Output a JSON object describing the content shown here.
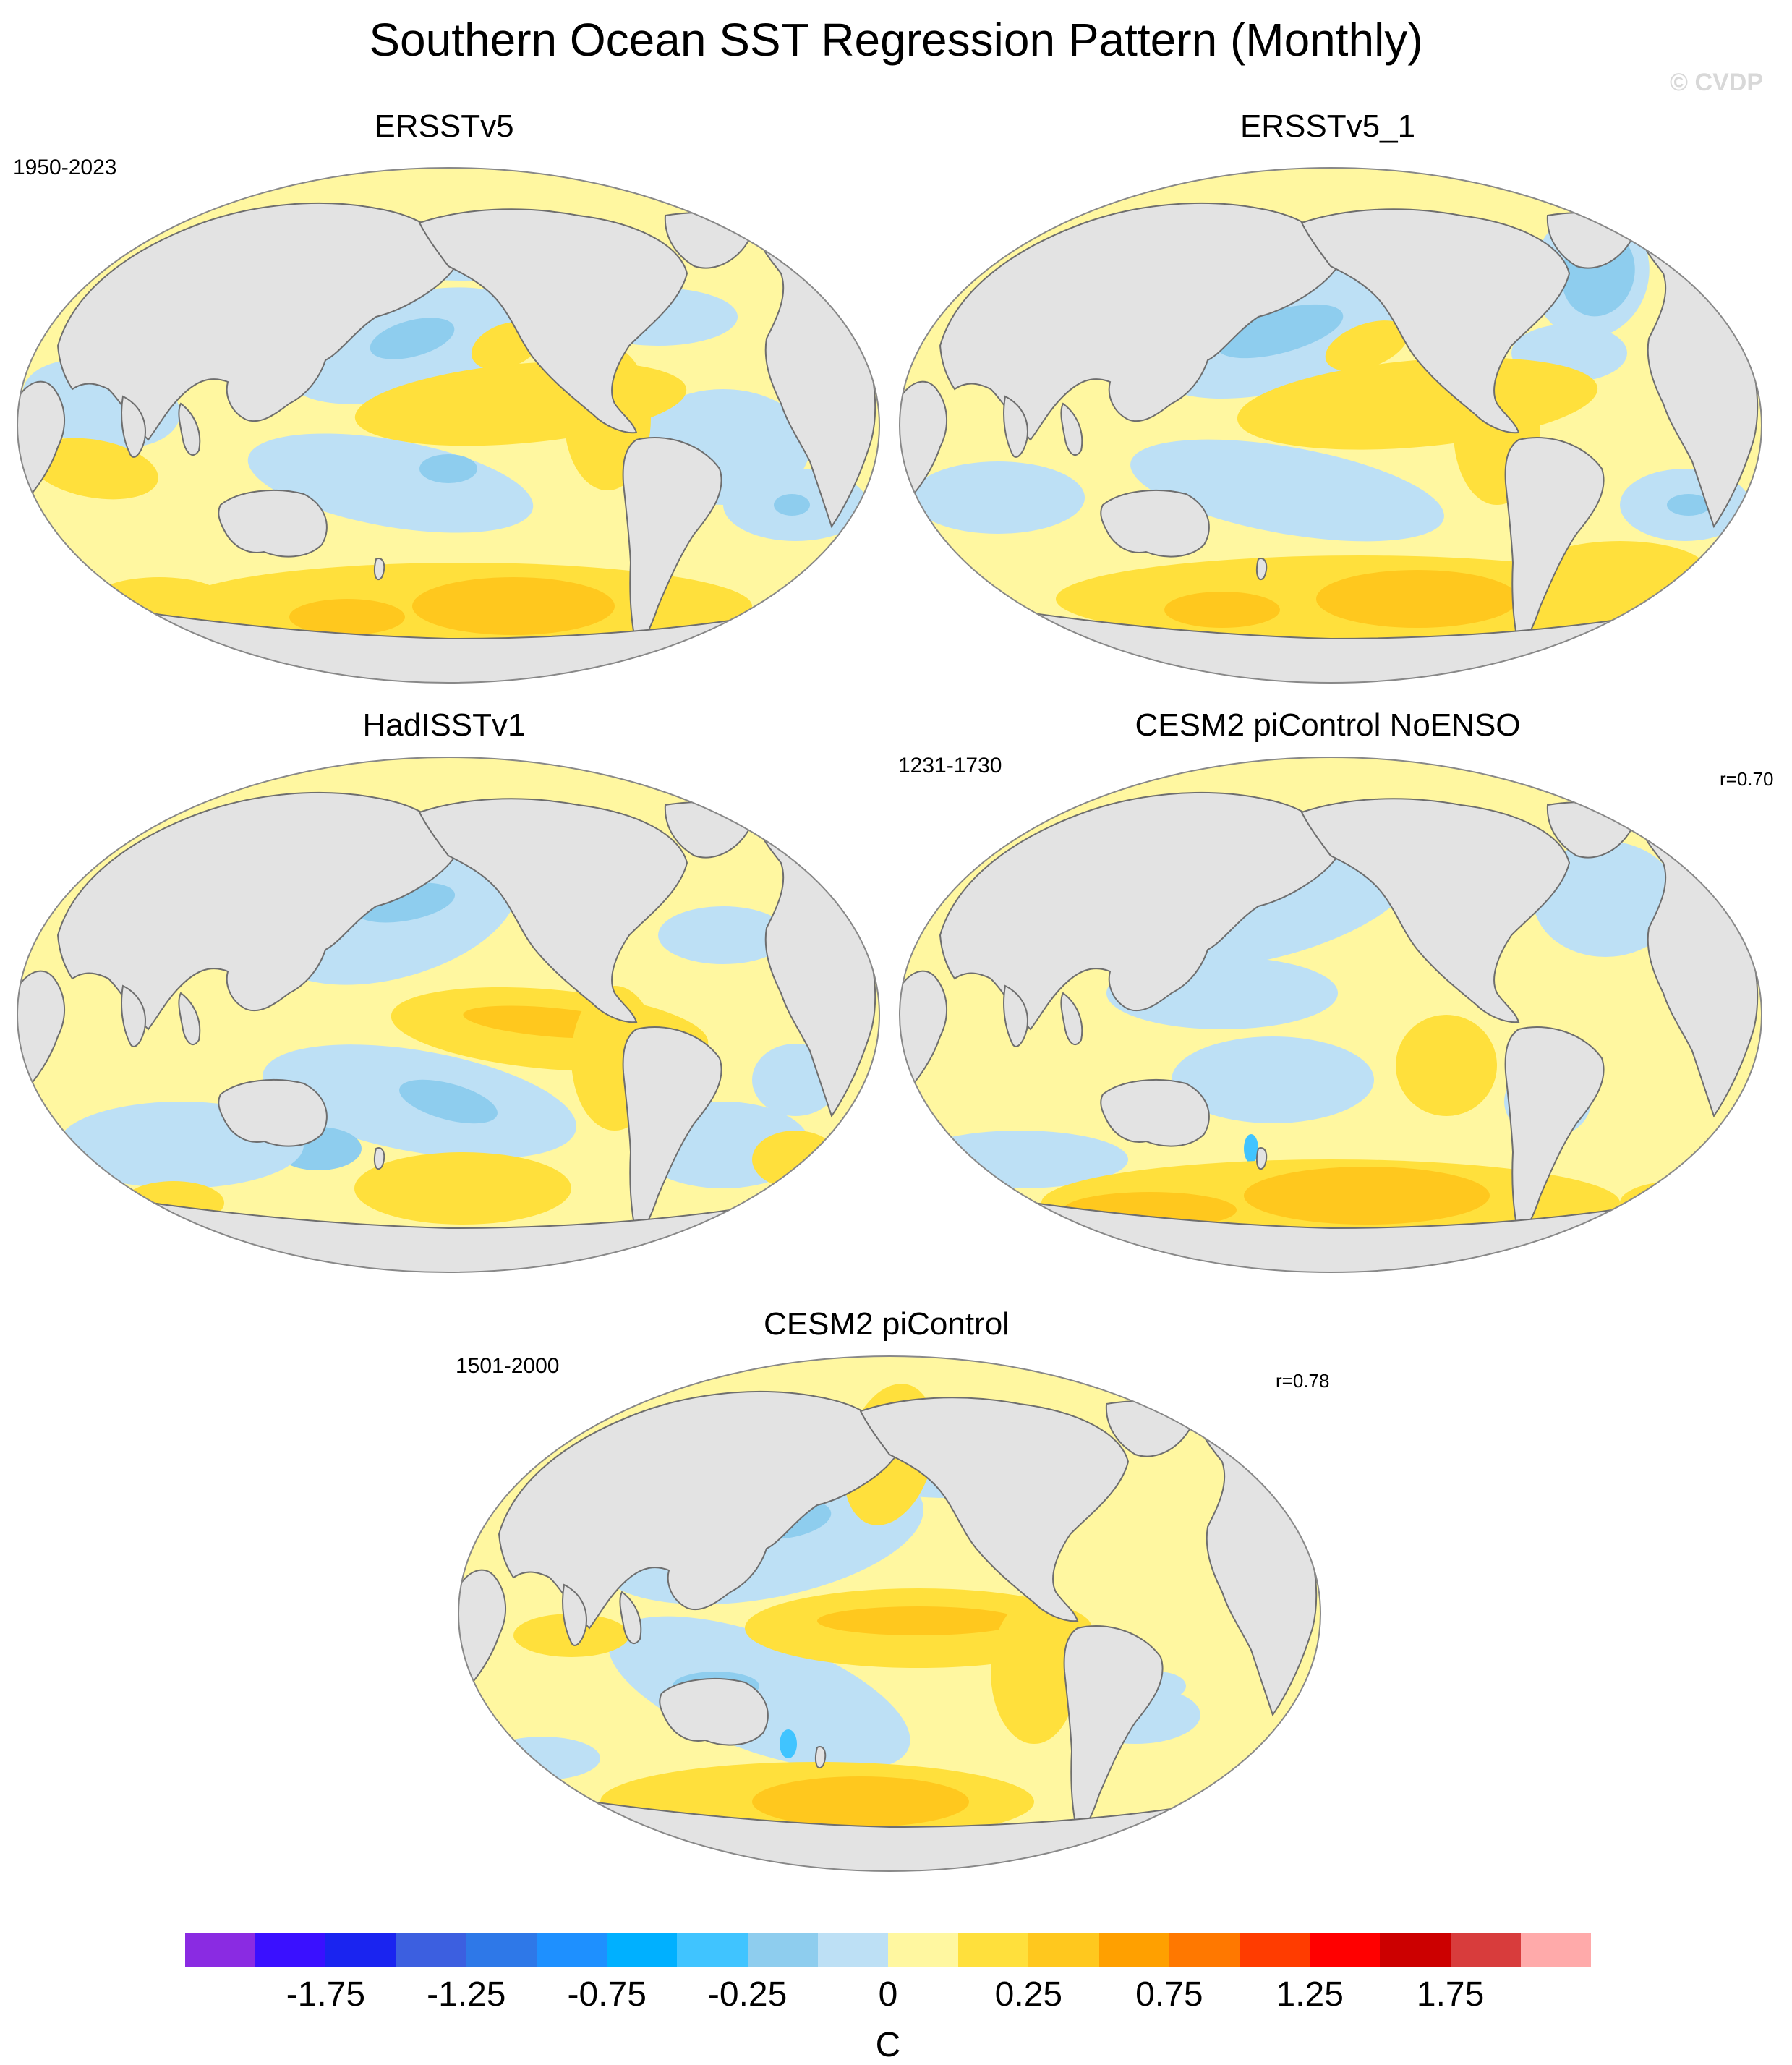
{
  "figure": {
    "title": "Southern Ocean SST Regression Pattern (Monthly)",
    "watermark": "© CVDP"
  },
  "panels": [
    {
      "title": "ERSSTv5",
      "period": "1950-2023",
      "corr": ""
    },
    {
      "title": "ERSSTv5_1",
      "period": "",
      "corr": ""
    },
    {
      "title": "HadISSTv1",
      "period": "",
      "corr": ""
    },
    {
      "title": "CESM2 piControl NoENSO",
      "period": "1231-1730",
      "corr": "r=0.70"
    },
    {
      "title": "CESM2 piControl",
      "period": "1501-2000",
      "corr": "r=0.78"
    }
  ],
  "colorbar": {
    "units": "C",
    "tick_labels": [
      "-1.75",
      "-1.25",
      "-0.75",
      "-0.25",
      "0",
      "0.25",
      "0.75",
      "1.25",
      "1.75"
    ],
    "colors": [
      "#8a2be2",
      "#3a10ff",
      "#1a24f0",
      "#3c5fe0",
      "#2e78e8",
      "#1e90ff",
      "#00b0ff",
      "#40c4ff",
      "#8ecdee",
      "#bde0f5",
      "#fff7a0",
      "#ffe03c",
      "#ffc81e",
      "#ffa000",
      "#ff7800",
      "#ff3c00",
      "#ff0000",
      "#cc0000",
      "#d83c3c",
      "#ffaaaa"
    ]
  },
  "map_colors": {
    "ocean_base": "#fff7a0",
    "land": "#e3e3e3",
    "coast": "#6e6e6e",
    "neg_light": "#bde0f5",
    "neg_mid": "#8ecdee",
    "neg_strong": "#40c4ff",
    "pos_mid": "#ffe03c",
    "pos_strong": "#ffc81e"
  }
}
